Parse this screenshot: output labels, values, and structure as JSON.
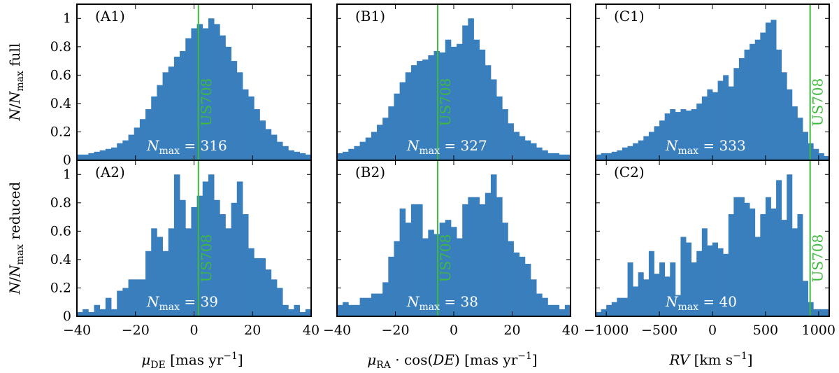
{
  "colors": {
    "bar": "#3a7fbd",
    "marker": "#3dba3d",
    "text": "#000000"
  },
  "chart_data": {
    "type": "bar",
    "ylabels": {
      "top": "N/N_max full",
      "bottom": "N/N_max reduced"
    },
    "ylim": [
      0,
      1.1
    ],
    "yticks": [
      0,
      0.2,
      0.4,
      0.6,
      0.8,
      1
    ],
    "columns": [
      {
        "xlim": [
          -40,
          40
        ],
        "xticks": [
          -40,
          -20,
          0,
          20,
          40
        ],
        "xlabel": "μ_DE [mas yr^−1]",
        "marker": {
          "x": 1.5,
          "label": "US708"
        },
        "rows": [
          {
            "panel_label": "(A1)",
            "nmax_label": "N_max = 316",
            "values": [
              0.04,
              0.04,
              0.05,
              0.06,
              0.07,
              0.08,
              0.09,
              0.12,
              0.14,
              0.18,
              0.23,
              0.29,
              0.36,
              0.45,
              0.53,
              0.62,
              0.66,
              0.73,
              0.77,
              0.86,
              0.93,
              0.96,
              0.93,
              1.0,
              0.96,
              0.88,
              0.8,
              0.7,
              0.62,
              0.5,
              0.45,
              0.36,
              0.28,
              0.22,
              0.18,
              0.13,
              0.1,
              0.07,
              0.06,
              0.05,
              0.04
            ]
          },
          {
            "panel_label": "(A2)",
            "nmax_label": "N_max = 39",
            "values": [
              0.03,
              0.05,
              0.03,
              0.08,
              0.05,
              0.13,
              0.05,
              0.18,
              0.2,
              0.26,
              0.26,
              0.26,
              0.46,
              0.62,
              0.56,
              0.46,
              0.62,
              1.0,
              0.82,
              0.62,
              0.77,
              0.85,
              0.95,
              1.0,
              0.82,
              0.72,
              0.62,
              0.8,
              0.95,
              0.72,
              0.48,
              0.41,
              0.41,
              0.33,
              0.26,
              0.2,
              0.08,
              0.05,
              0.08,
              0.03,
              0.05
            ]
          }
        ]
      },
      {
        "xlim": [
          -40,
          40
        ],
        "xticks": [
          -40,
          -20,
          0,
          20,
          40
        ],
        "xlabel": "μ_RA · cos(DE) [mas yr^−1]",
        "marker": {
          "x": -5.5,
          "label": "US708"
        },
        "rows": [
          {
            "panel_label": "(B1)",
            "nmax_label": "N_max = 327",
            "values": [
              0.05,
              0.06,
              0.08,
              0.1,
              0.13,
              0.16,
              0.2,
              0.25,
              0.3,
              0.38,
              0.47,
              0.55,
              0.62,
              0.67,
              0.7,
              0.71,
              0.74,
              0.77,
              0.76,
              0.85,
              0.8,
              0.82,
              0.95,
              1.0,
              0.85,
              0.78,
              0.67,
              0.57,
              0.45,
              0.36,
              0.26,
              0.2,
              0.17,
              0.14,
              0.12,
              0.09,
              0.07,
              0.05,
              0.05,
              0.04,
              0.04
            ]
          },
          {
            "panel_label": "(B2)",
            "nmax_label": "N_max = 38",
            "values": [
              0.08,
              0.1,
              0.08,
              0.08,
              0.13,
              0.13,
              0.16,
              0.16,
              0.24,
              0.42,
              0.53,
              0.76,
              0.66,
              0.79,
              0.79,
              0.55,
              0.61,
              0.58,
              0.66,
              0.68,
              0.63,
              0.55,
              0.79,
              0.84,
              0.84,
              0.79,
              0.87,
              1.0,
              0.84,
              0.66,
              0.53,
              0.45,
              0.42,
              0.37,
              0.26,
              0.16,
              0.13,
              0.08,
              0.08,
              0.05,
              0.08
            ]
          }
        ]
      },
      {
        "xlim": [
          -1100,
          1100
        ],
        "xticks": [
          -1000,
          -500,
          0,
          500,
          1000
        ],
        "xlabel": "RV [km s^−1]",
        "marker": {
          "x": 920,
          "label": "US708"
        },
        "rows": [
          {
            "panel_label": "(C1)",
            "nmax_label": "N_max = 333",
            "values": [
              0.04,
              0.05,
              0.05,
              0.06,
              0.07,
              0.09,
              0.1,
              0.12,
              0.14,
              0.17,
              0.2,
              0.24,
              0.28,
              0.33,
              0.36,
              0.34,
              0.36,
              0.35,
              0.36,
              0.4,
              0.45,
              0.5,
              0.48,
              0.56,
              0.6,
              0.52,
              0.65,
              0.72,
              0.78,
              0.82,
              0.85,
              0.9,
              0.97,
              0.99,
              0.78,
              0.62,
              0.5,
              0.38,
              0.3,
              0.2,
              0.12,
              0.08,
              0.05,
              0.03
            ]
          },
          {
            "panel_label": "(C2)",
            "nmax_label": "N_max = 40",
            "values": [
              0.03,
              0.05,
              0.08,
              0.1,
              0.13,
              0.13,
              0.38,
              0.21,
              0.31,
              0.26,
              0.46,
              0.3,
              0.38,
              0.28,
              0.38,
              0.15,
              0.56,
              0.52,
              0.38,
              0.46,
              0.62,
              0.5,
              0.52,
              0.48,
              0.44,
              0.72,
              0.84,
              0.84,
              0.8,
              0.76,
              0.56,
              0.72,
              0.84,
              0.76,
              0.96,
              0.68,
              1.0,
              0.62,
              0.72,
              0.25,
              0.1,
              0.05,
              0.05,
              0.05
            ]
          }
        ]
      }
    ]
  }
}
